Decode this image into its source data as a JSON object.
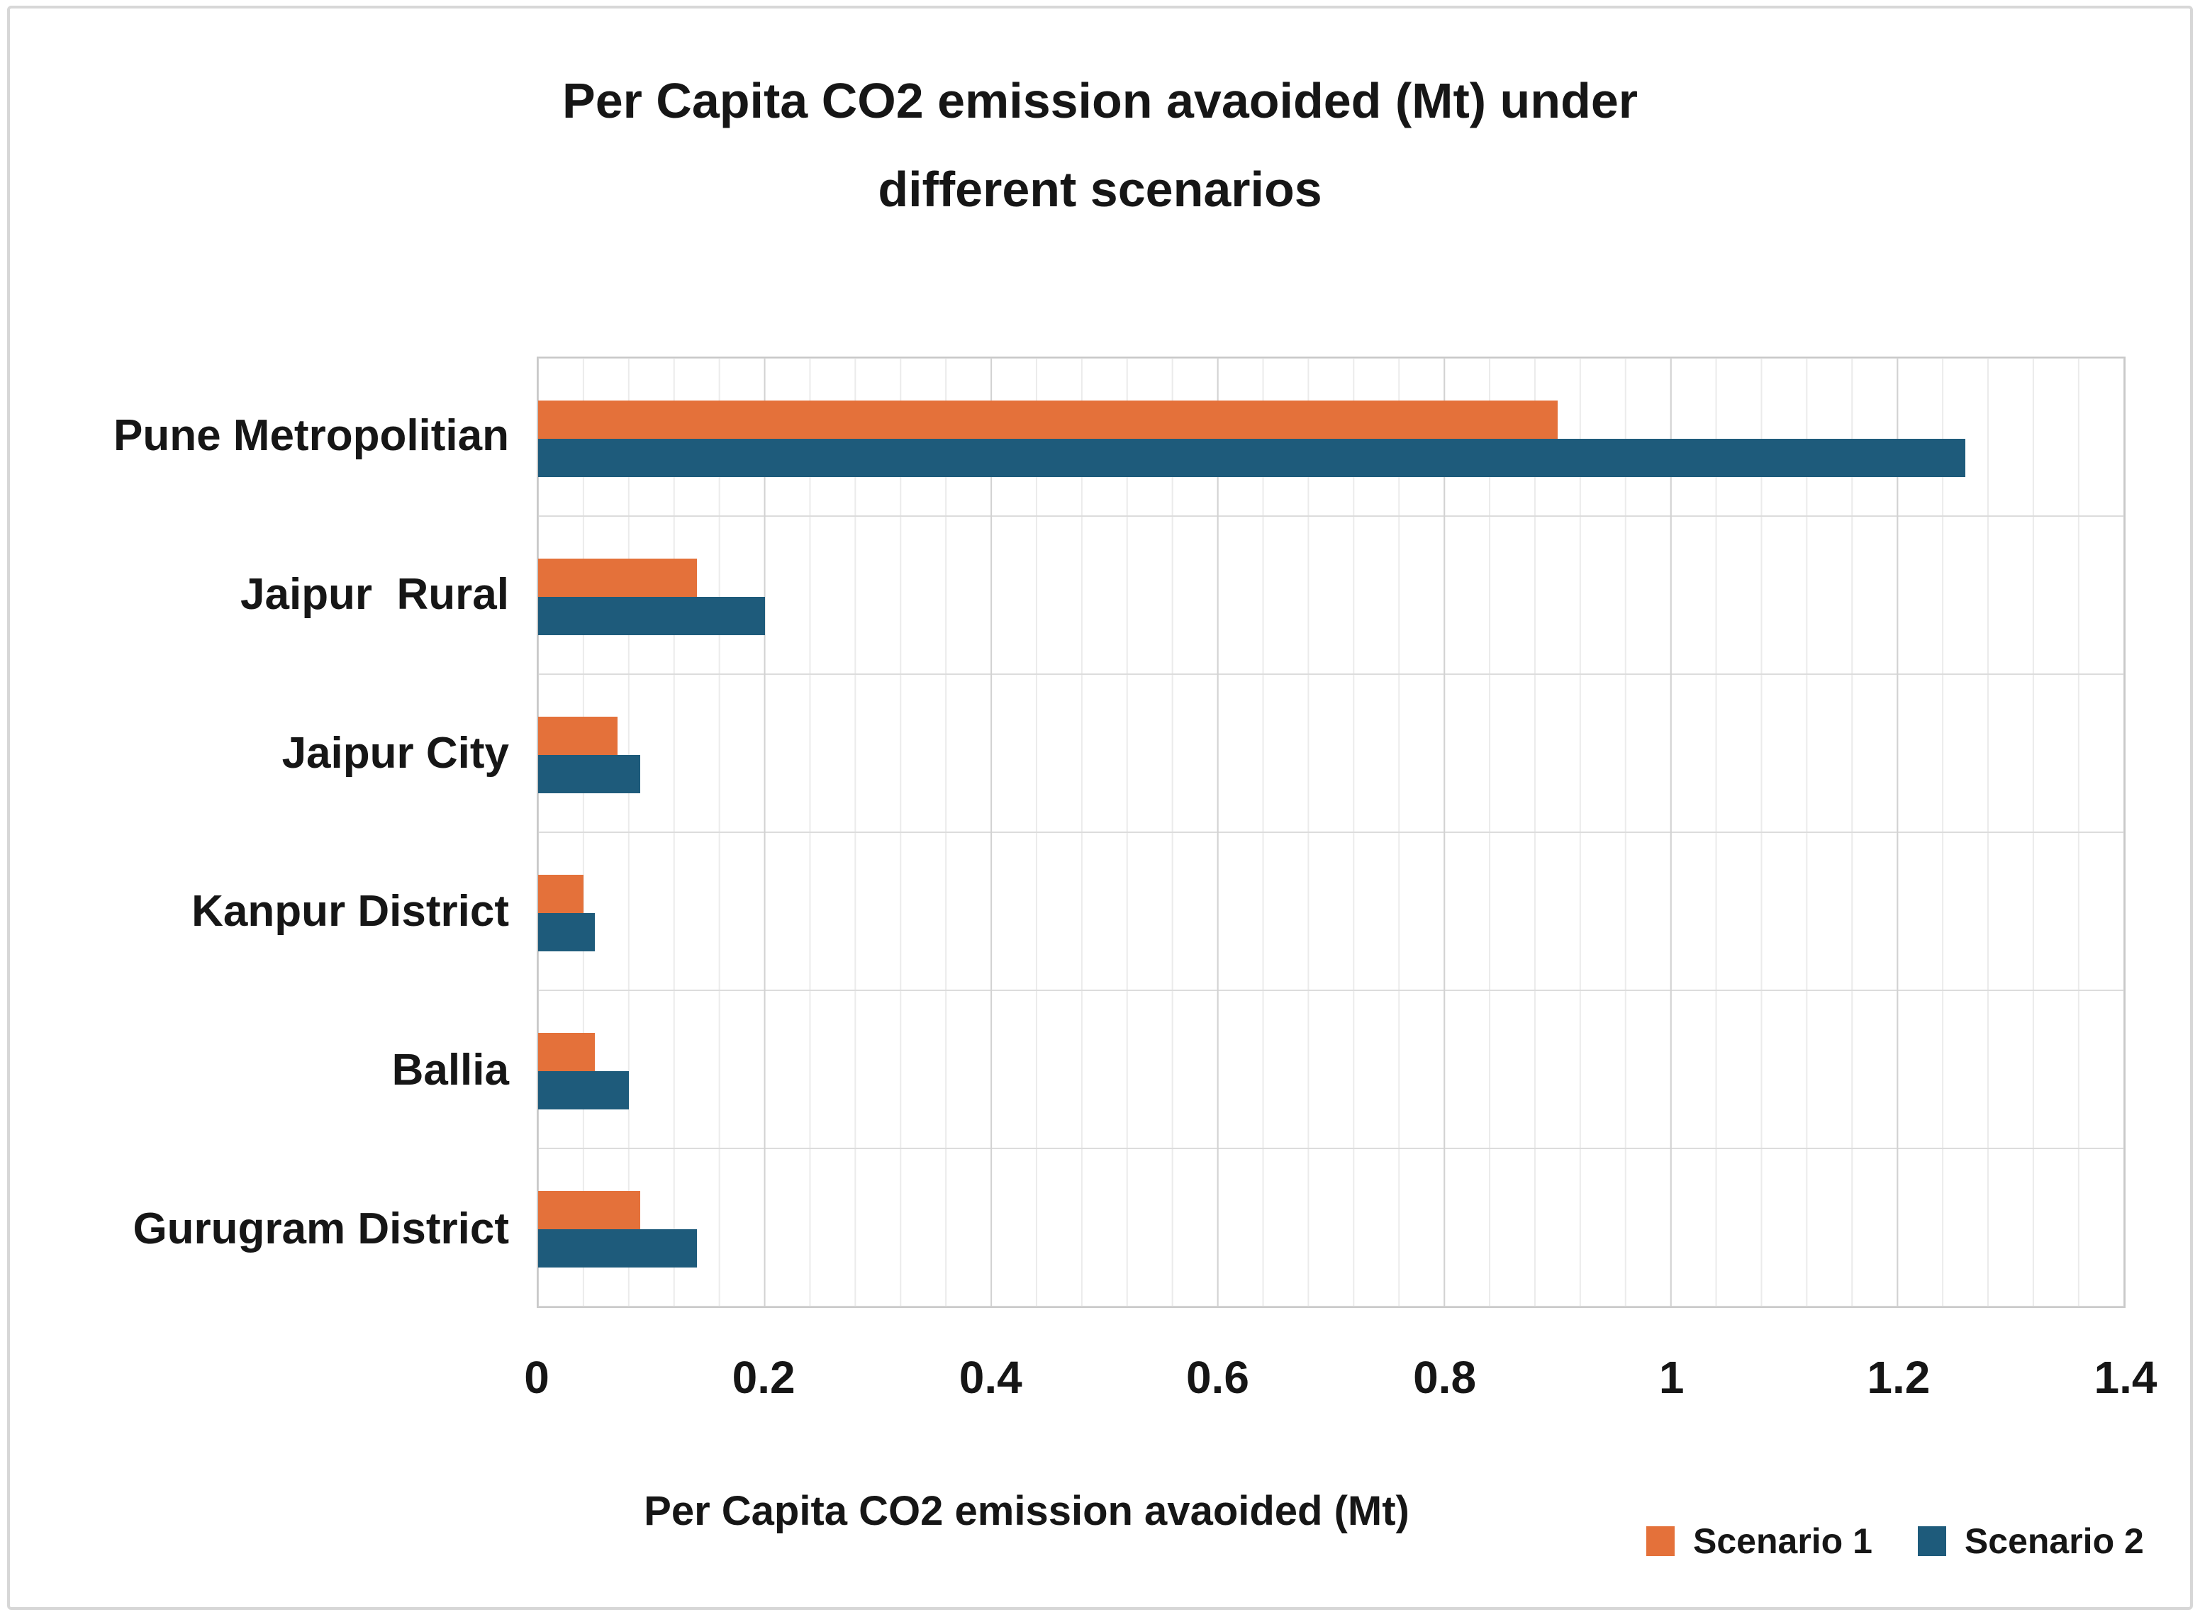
{
  "chart_data": {
    "type": "bar",
    "orientation": "horizontal",
    "title": "Per Capita CO2 emission avaoided (Mt) under different scenarios",
    "title_lines": [
      "Per Capita CO2 emission avaoided (Mt) under",
      "different scenarios"
    ],
    "categories": [
      "Pune Metropolitian",
      "Jaipur  Rural",
      "Jaipur City",
      "Kanpur District",
      "Ballia",
      "Gurugram District"
    ],
    "series": [
      {
        "name": "Scenario 1",
        "color": "#e4713a",
        "values": [
          0.9,
          0.14,
          0.07,
          0.04,
          0.05,
          0.09
        ]
      },
      {
        "name": "Scenario 2",
        "color": "#1e5b7b",
        "values": [
          1.26,
          0.2,
          0.09,
          0.05,
          0.08,
          0.14
        ]
      }
    ],
    "xlabel": "Per Capita CO2 emission avaoided (Mt)",
    "ylabel": "",
    "xlim": [
      0,
      1.4
    ],
    "x_major_ticks": [
      "0",
      "0.2",
      "0.4",
      "0.6",
      "0.8",
      "1",
      "1.2",
      "1.4"
    ],
    "x_major_unit": 0.2,
    "x_minor_unit": 0.04,
    "grid": "vertical major + vertical minor + horizontal category separators",
    "legend_position": "bottom-right",
    "colors": {
      "background": "#ffffff",
      "major_gridline": "#d2d2d2",
      "minor_gridline": "#ebebeb",
      "plot_border": "#c9c9c9",
      "outer_border": "#d7d7d7",
      "text": "#161616"
    }
  }
}
